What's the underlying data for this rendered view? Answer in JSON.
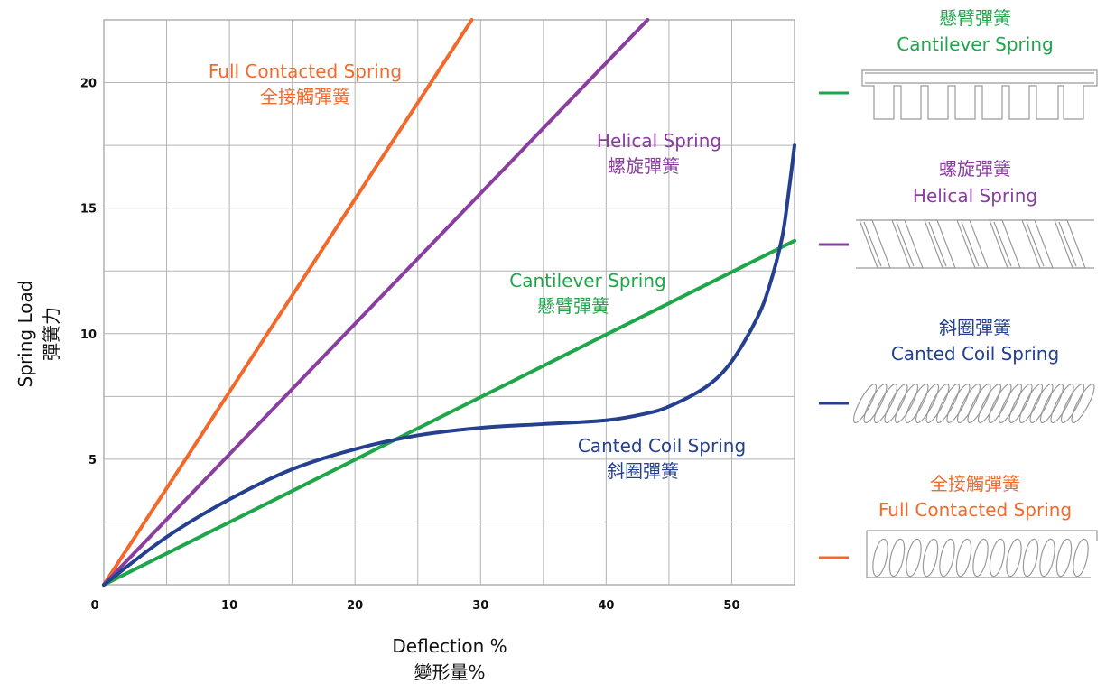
{
  "chart_data": {
    "type": "line",
    "title": "",
    "xlabel": "Deflection %",
    "xlabel_zh": "變形量%",
    "ylabel": "Spring Load",
    "ylabel_zh": "彈簧力",
    "xlim": [
      0,
      55
    ],
    "ylim": [
      0,
      22.5
    ],
    "xticks": [
      0,
      10,
      20,
      30,
      40,
      50
    ],
    "yticks": [
      5,
      10,
      15,
      20
    ],
    "grid": true,
    "series": [
      {
        "name": "Full Contacted Spring",
        "name_zh": "全接觸彈簧",
        "color": "#f26a2b",
        "x": [
          0,
          29.3
        ],
        "y": [
          0,
          22.5
        ]
      },
      {
        "name": "Helical Spring",
        "name_zh": "螺旋彈簧",
        "color": "#8a3ea0",
        "x": [
          0,
          43.3
        ],
        "y": [
          0,
          22.5
        ]
      },
      {
        "name": "Cantilever Spring",
        "name_zh": "懸臂彈簧",
        "color": "#1fa64a",
        "x": [
          0,
          55
        ],
        "y": [
          0,
          13.7
        ]
      },
      {
        "name": "Canted Coil Spring",
        "name_zh": "斜圈彈簧",
        "color": "#24408f",
        "x": [
          0,
          5,
          10,
          15,
          20,
          25,
          30,
          35,
          40,
          43,
          45,
          48,
          50,
          52,
          53,
          54,
          54.5,
          55
        ],
        "y": [
          0,
          1.9,
          3.4,
          4.6,
          5.4,
          5.95,
          6.25,
          6.4,
          6.55,
          6.8,
          7.1,
          7.9,
          8.9,
          10.6,
          11.9,
          13.8,
          15.5,
          17.5
        ]
      }
    ],
    "legend": [
      {
        "name_zh": "懸臂彈簧",
        "name": "Cantilever Spring",
        "color": "#1fa64a",
        "illustration": "cantilever-spring"
      },
      {
        "name_zh": "螺旋彈簧",
        "name": "Helical Spring",
        "color": "#8a3ea0",
        "illustration": "helical-spring"
      },
      {
        "name_zh": "斜圈彈簧",
        "name": "Canted Coil Spring",
        "color": "#24408f",
        "illustration": "canted-coil-spring"
      },
      {
        "name_zh": "全接觸彈簧",
        "name": "Full Contacted Spring",
        "color": "#f26a2b",
        "illustration": "full-contacted-spring"
      }
    ]
  }
}
